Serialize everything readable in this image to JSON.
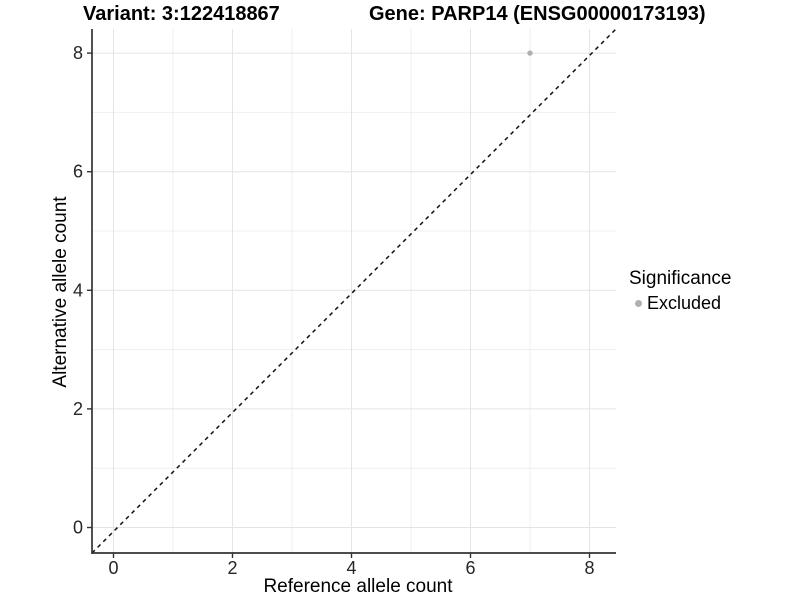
{
  "chart_data": {
    "type": "scatter",
    "title_left": "Variant: 3:122418867",
    "title_right": "Gene: PARP14 (ENSG00000173193)",
    "xlabel": "Reference allele count",
    "ylabel": "Alternative allele count",
    "xlim": [
      -0.4,
      8.4
    ],
    "ylim": [
      -0.4,
      8.4
    ],
    "x_ticks": [
      0,
      2,
      4,
      6,
      8
    ],
    "y_ticks": [
      0,
      2,
      4,
      6,
      8
    ],
    "x_minor_ticks": [
      1,
      3,
      5,
      7
    ],
    "y_minor_ticks": [
      1,
      3,
      5,
      7
    ],
    "grid": true,
    "series": [
      {
        "name": "Excluded",
        "color": "#b0b0b0",
        "points": [
          {
            "x": 7,
            "y": 8
          }
        ]
      }
    ],
    "reference_line": {
      "type": "identity",
      "slope": 1,
      "intercept": 0,
      "style": "dashed",
      "color": "#111111"
    },
    "legend": {
      "title": "Significance",
      "position": "right",
      "entries": [
        {
          "label": "Excluded",
          "color": "#b0b0b0"
        }
      ]
    },
    "colors": {
      "grid_major": "#e4e4e4",
      "grid_minor": "#efefef",
      "axis_line": "#333333",
      "tick_mark": "#333333",
      "background": "#ffffff"
    }
  }
}
